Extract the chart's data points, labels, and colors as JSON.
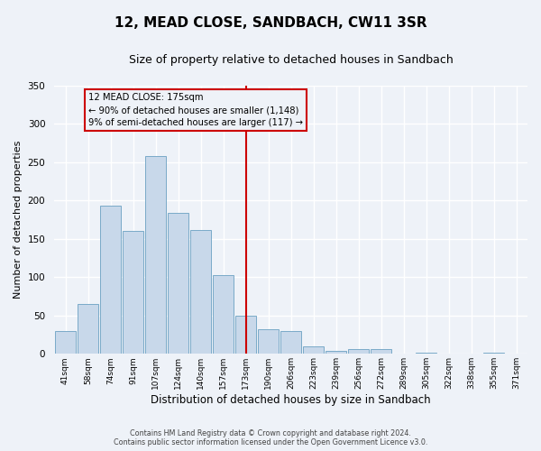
{
  "title": "12, MEAD CLOSE, SANDBACH, CW11 3SR",
  "subtitle": "Size of property relative to detached houses in Sandbach",
  "xlabel": "Distribution of detached houses by size in Sandbach",
  "ylabel": "Number of detached properties",
  "bar_labels": [
    "41sqm",
    "58sqm",
    "74sqm",
    "91sqm",
    "107sqm",
    "124sqm",
    "140sqm",
    "157sqm",
    "173sqm",
    "190sqm",
    "206sqm",
    "223sqm",
    "239sqm",
    "256sqm",
    "272sqm",
    "289sqm",
    "305sqm",
    "322sqm",
    "338sqm",
    "355sqm",
    "371sqm"
  ],
  "bar_values": [
    30,
    65,
    193,
    160,
    258,
    184,
    162,
    103,
    50,
    32,
    30,
    10,
    4,
    6,
    6,
    0,
    1,
    0,
    0,
    2,
    0
  ],
  "bar_color": "#c8d8ea",
  "bar_edge_color": "#7aaac8",
  "vline_x": 8,
  "vline_color": "#cc0000",
  "ylim": [
    0,
    350
  ],
  "yticks": [
    0,
    50,
    100,
    150,
    200,
    250,
    300,
    350
  ],
  "annotation_title": "12 MEAD CLOSE: 175sqm",
  "annotation_line1": "← 90% of detached houses are smaller (1,148)",
  "annotation_line2": "9% of semi-detached houses are larger (117) →",
  "annotation_box_color": "#cc0000",
  "footer_line1": "Contains HM Land Registry data © Crown copyright and database right 2024.",
  "footer_line2": "Contains public sector information licensed under the Open Government Licence v3.0.",
  "background_color": "#eef2f8",
  "grid_color": "#ffffff",
  "title_fontsize": 11,
  "subtitle_fontsize": 9,
  "xlabel_fontsize": 8.5,
  "ylabel_fontsize": 8
}
